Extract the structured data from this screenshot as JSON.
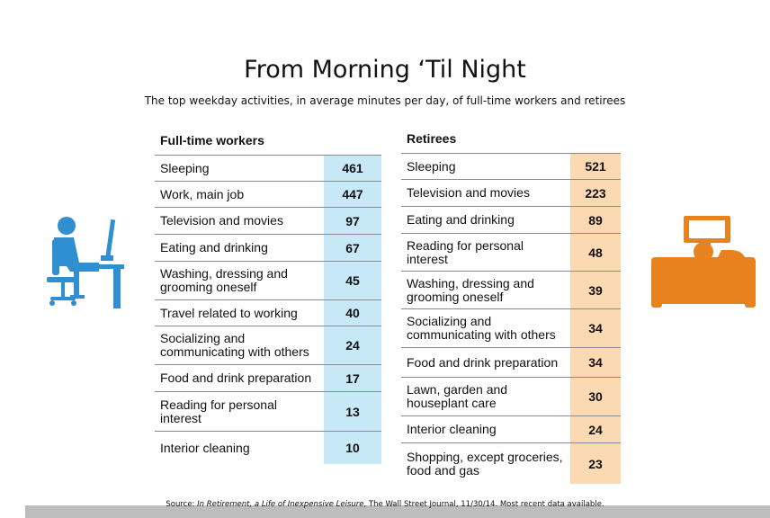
{
  "title": "From Morning ‘Til Night",
  "subtitle": "The top weekday activities, in average minutes per day, of full-time workers and retirees",
  "colors": {
    "workers_accent": "#c7e8f7",
    "retirees_accent": "#fbd9b3",
    "worker_icon": "#2f8fd0",
    "retiree_icon": "#e8821e"
  },
  "icons": {
    "left": "person-at-computer-icon",
    "right": "person-on-sofa-watching-tv-icon"
  },
  "chart_data": [
    {
      "type": "table",
      "title": "Full-time workers",
      "categories": [
        "Sleeping",
        "Work, main job",
        "Television and movies",
        "Eating and drinking",
        "Washing, dressing and grooming oneself",
        "Travel related to working",
        "Socializing and communicating with others",
        "Food and drink preparation",
        "Reading for personal interest",
        "Interior cleaning"
      ],
      "labels": [
        "Sleeping",
        "Work, main job",
        "Television and movies",
        "Eating and drinking",
        "Washing, dressing and\ngrooming oneself",
        "Travel related to working",
        "Socializing and\ncommunicating with others",
        "Food and drink preparation",
        "Reading for personal\ninterest",
        "Interior cleaning"
      ],
      "values": [
        461,
        447,
        97,
        67,
        45,
        40,
        24,
        17,
        13,
        10
      ]
    },
    {
      "type": "table",
      "title": "Retirees",
      "categories": [
        "Sleeping",
        "Television and movies",
        "Eating and drinking",
        "Reading for personal interest",
        "Washing, dressing and grooming oneself",
        "Socializing and communicating with others",
        "Food and drink preparation",
        "Lawn, garden and houseplant care",
        "Interior cleaning",
        "Shopping, except groceries, food and gas"
      ],
      "labels": [
        "Sleeping",
        "Television and movies",
        "Eating and drinking",
        "Reading for personal\ninterest",
        "Washing, dressing and\ngrooming oneself",
        "Socializing and\ncommunicating with others",
        "Food and drink preparation",
        "Lawn, garden and\nhouseplant care",
        "Interior cleaning",
        "Shopping, except groceries,\nfood and gas"
      ],
      "values": [
        521,
        223,
        89,
        48,
        39,
        34,
        34,
        30,
        24,
        23
      ]
    }
  ],
  "source": {
    "prefix": "Source: ",
    "italic": "In Retirement, a Life of Inexpensive Leisure",
    "suffix": ", The Wall Street Journal, 11/30/14. Most recent data available."
  }
}
